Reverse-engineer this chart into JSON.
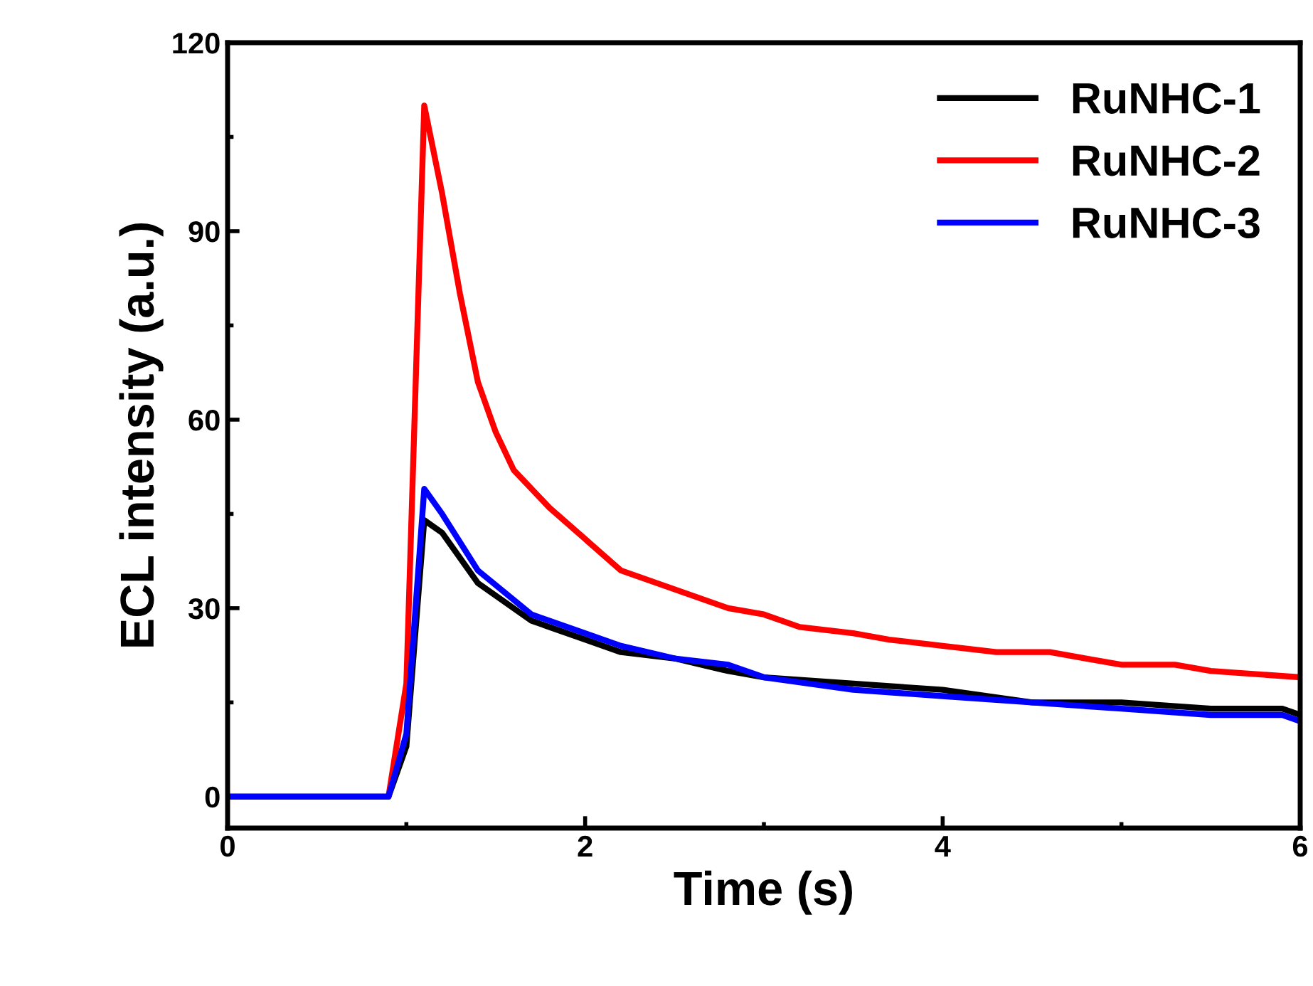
{
  "chart_data": {
    "type": "line",
    "xlabel": "Time (s)",
    "ylabel": "ECL intensity (a.u.)",
    "xlim": [
      0,
      6
    ],
    "xticks": [
      0,
      2,
      4,
      6
    ],
    "ylim": [
      -5,
      120
    ],
    "yticks": [
      0,
      30,
      60,
      90,
      120
    ],
    "legend": "top right",
    "grid": false,
    "line_style": "solid",
    "marker": "none",
    "series": [
      {
        "name": "RuNHC-1",
        "color": "#000000",
        "x": [
          0,
          0.9,
          1.0,
          1.1,
          1.2,
          1.4,
          1.7,
          2.0,
          2.2,
          2.5,
          2.8,
          3.0,
          3.5,
          4.0,
          4.5,
          5.0,
          5.5,
          5.9,
          6.0
        ],
        "values": [
          0,
          0,
          8,
          44,
          42,
          34,
          28,
          25,
          23,
          22,
          20,
          19,
          18,
          17,
          15,
          15,
          14,
          14,
          13
        ]
      },
      {
        "name": "RuNHC-2",
        "color": "#ff0000",
        "x": [
          0,
          0.9,
          1.0,
          1.1,
          1.2,
          1.3,
          1.4,
          1.5,
          1.6,
          1.8,
          2.0,
          2.2,
          2.5,
          2.8,
          3.0,
          3.2,
          3.5,
          3.7,
          4.0,
          4.3,
          4.6,
          4.8,
          5.0,
          5.3,
          5.5,
          6.0
        ],
        "values": [
          0,
          0,
          18,
          110,
          96,
          80,
          66,
          58,
          52,
          46,
          41,
          36,
          33,
          30,
          29,
          27,
          26,
          25,
          24,
          23,
          23,
          22,
          21,
          21,
          20,
          19
        ]
      },
      {
        "name": "RuNHC-3",
        "color": "#0000ff",
        "x": [
          0,
          0.9,
          1.0,
          1.1,
          1.2,
          1.4,
          1.7,
          2.0,
          2.2,
          2.5,
          2.8,
          3.0,
          3.5,
          4.0,
          4.5,
          5.0,
          5.5,
          5.9,
          6.0
        ],
        "values": [
          0,
          0,
          10,
          49,
          45,
          36,
          29,
          26,
          24,
          22,
          21,
          19,
          17,
          16,
          15,
          14,
          13,
          13,
          12
        ]
      }
    ]
  }
}
